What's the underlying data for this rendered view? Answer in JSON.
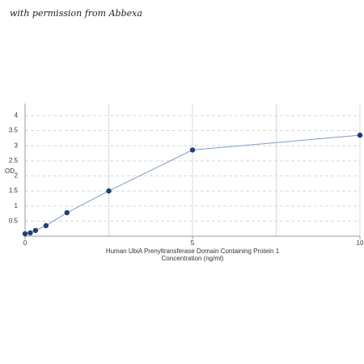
{
  "watermark": "with permission from Abbexa",
  "chart_data": {
    "type": "line",
    "ylabel": "OD",
    "xlabel": [
      "Human UbiA Prenyltransferase Domain Containing Protein 1",
      "Concentration (ng/ml)"
    ],
    "x": [
      0,
      0.156,
      0.312,
      0.625,
      1.25,
      2.5,
      5,
      10
    ],
    "series": [
      {
        "color": "#1f3f78",
        "values": [
          0.08,
          0.11,
          0.19,
          0.35,
          0.78,
          1.5,
          2.86,
          3.35
        ]
      }
    ],
    "xlim": [
      0,
      10
    ],
    "ylim": [
      0,
      4.4
    ],
    "xticks": [
      0,
      5,
      10
    ],
    "xgrid": [
      2.5,
      5,
      7.5,
      10
    ],
    "yticks": [
      0.5,
      1,
      1.5,
      2,
      2.5,
      3,
      3.5,
      4
    ],
    "grid": true
  }
}
